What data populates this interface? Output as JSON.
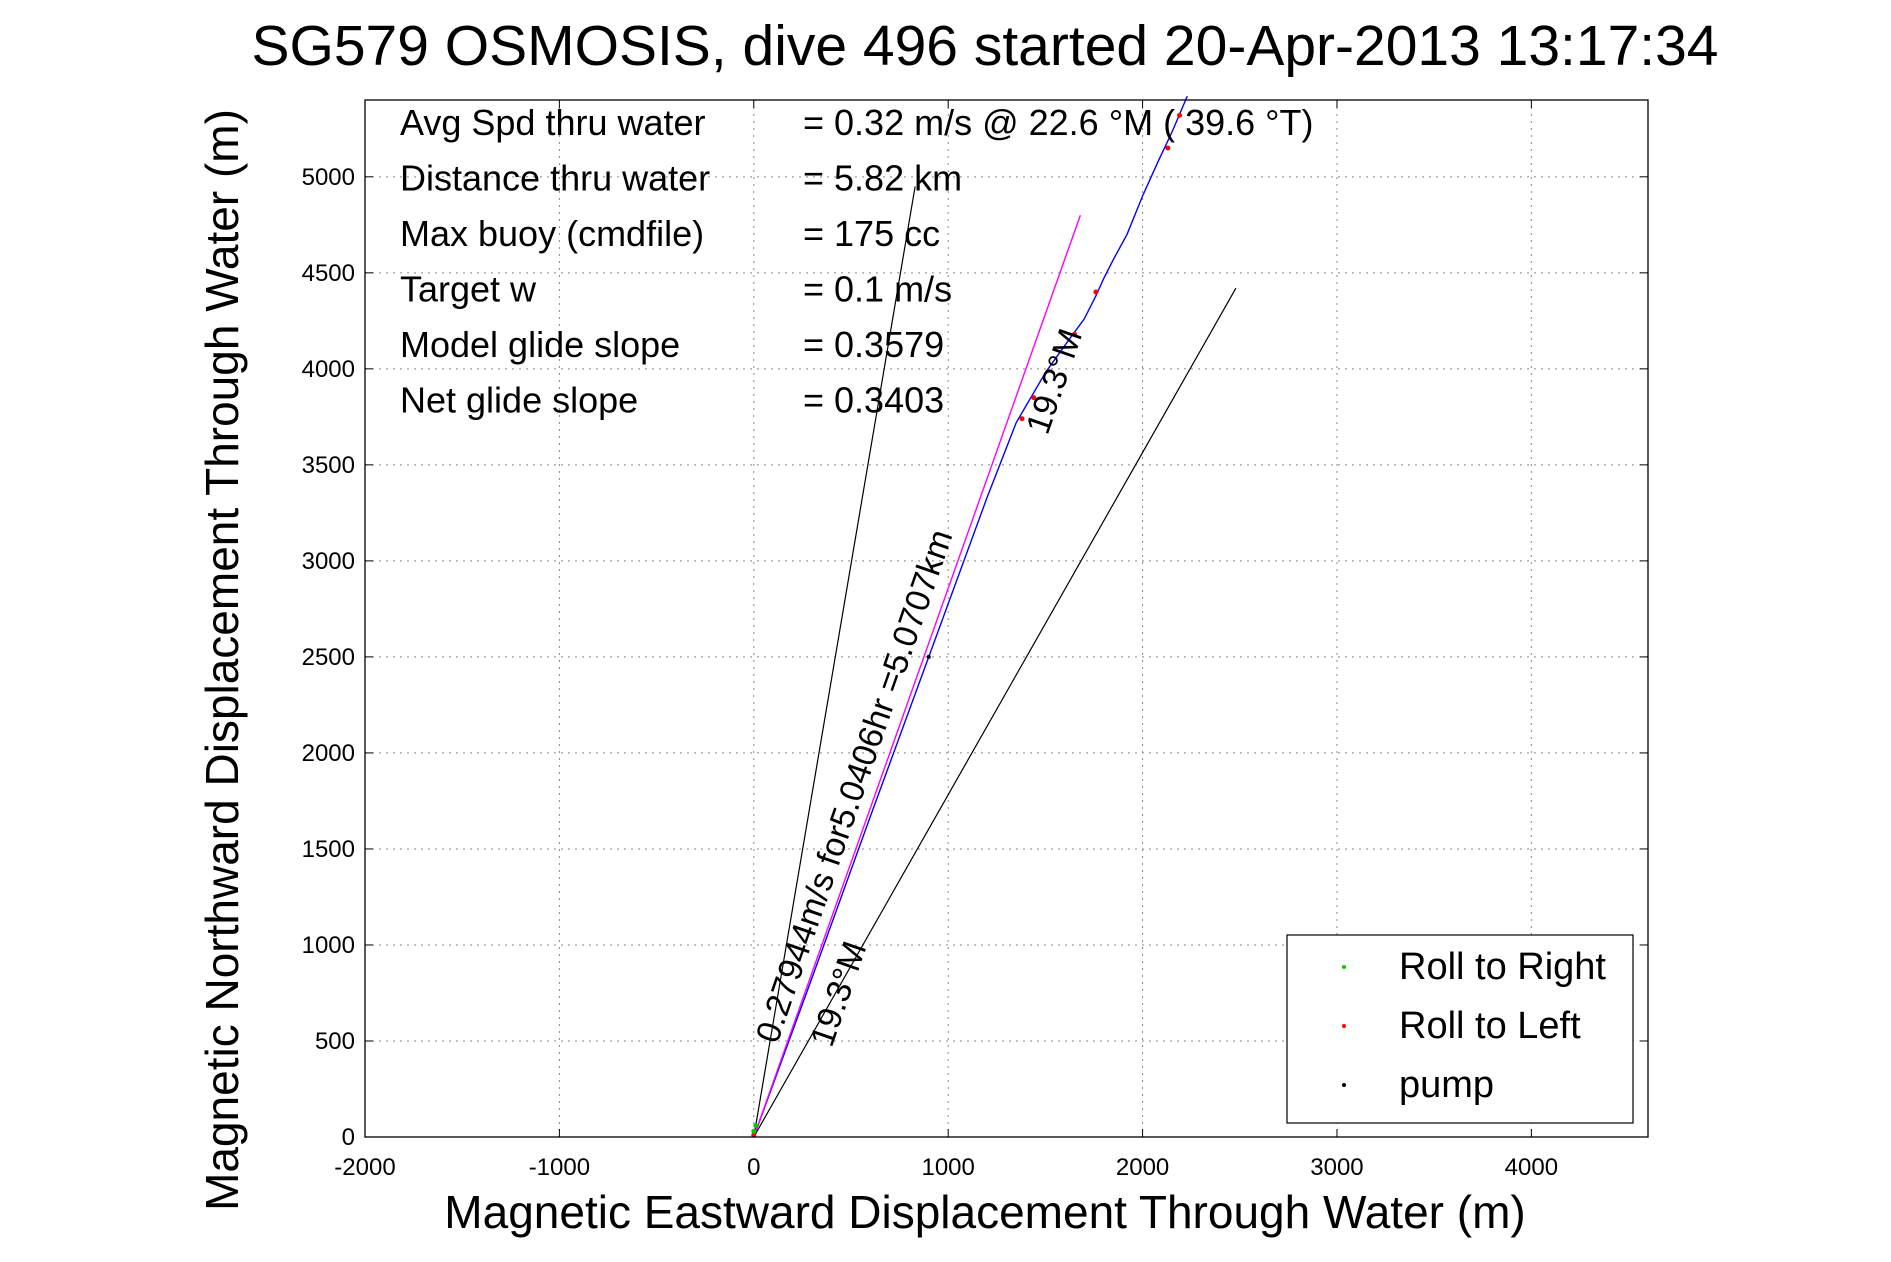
{
  "chart_data": {
    "type": "line",
    "title": "SG579 OSMOSIS, dive 496 started 20-Apr-2013 13:17:34",
    "xlabel": "Magnetic Eastward Displacement Through Water (m)",
    "ylabel": "Magnetic Northward Displacement Through Water (m)",
    "xlim": [
      -2000,
      4600
    ],
    "ylim": [
      0,
      5400
    ],
    "xticks": [
      -2000,
      -1000,
      0,
      1000,
      2000,
      3000,
      4000
    ],
    "yticks": [
      0,
      500,
      1000,
      1500,
      2000,
      2500,
      3000,
      3500,
      4000,
      4500,
      5000
    ],
    "grid": true,
    "colors": {
      "track": "#0000ff",
      "model": "#ff00ff",
      "roll_right": "#00cc00",
      "roll_left": "#ff0000",
      "pump": "#000000",
      "guides": "#000000"
    },
    "info_lines": [
      {
        "label": "Avg Spd thru water",
        "value": "=  0.32 m/s @  22.6 °M ( 39.6 °T)"
      },
      {
        "label": "Distance thru water",
        "value": "=  5.82 km"
      },
      {
        "label": "Max buoy (cmdfile)",
        "value": "= 175 cc"
      },
      {
        "label": "Target w",
        "value": "= 0.1 m/s"
      },
      {
        "label": "Model glide slope",
        "value": "= 0.3579"
      },
      {
        "label": "Net glide slope",
        "value": "= 0.3403"
      }
    ],
    "series": [
      {
        "name": "track",
        "x": [
          0,
          300,
          600,
          900,
          1200,
          1350,
          1500,
          1620,
          1700,
          1760,
          1800,
          1850,
          1920,
          2000,
          2080,
          2150,
          2230
        ],
        "y": [
          0,
          830,
          1670,
          2500,
          3330,
          3720,
          3980,
          4150,
          4260,
          4380,
          4470,
          4570,
          4700,
          4900,
          5080,
          5230,
          5420
        ]
      },
      {
        "name": "model",
        "x": [
          0,
          1680
        ],
        "y": [
          0,
          4800
        ]
      }
    ],
    "guide_lines": [
      {
        "x": [
          0,
          830
        ],
        "y": [
          0,
          4950
        ]
      },
      {
        "x": [
          0,
          2480
        ],
        "y": [
          0,
          4420
        ]
      }
    ],
    "markers": {
      "roll_right": {
        "x": [
          0,
          10
        ],
        "y": [
          30,
          60
        ]
      },
      "roll_left": {
        "x": [
          1380,
          1440,
          1650,
          1760,
          2130,
          2190,
          0
        ],
        "y": [
          3740,
          3850,
          4180,
          4400,
          5150,
          5320,
          10
        ]
      },
      "pump": {
        "x": [
          900
        ],
        "y": [
          2500
        ]
      }
    },
    "annotations": [
      {
        "text": "0.27944m/s for5.0406hr =5.0707km",
        "x": 120,
        "y": 480,
        "angle": -71
      },
      {
        "text": "19.3°M",
        "x": 400,
        "y": 460,
        "angle": -71
      },
      {
        "text": "19.3°M",
        "x": 1510,
        "y": 3650,
        "angle": -71
      }
    ],
    "legend": {
      "position": "bottom-right",
      "entries": [
        {
          "label": "Roll to Right",
          "color": "#00cc00"
        },
        {
          "label": "Roll to Left",
          "color": "#ff0000"
        },
        {
          "label": "pump",
          "color": "#000000"
        }
      ]
    }
  }
}
